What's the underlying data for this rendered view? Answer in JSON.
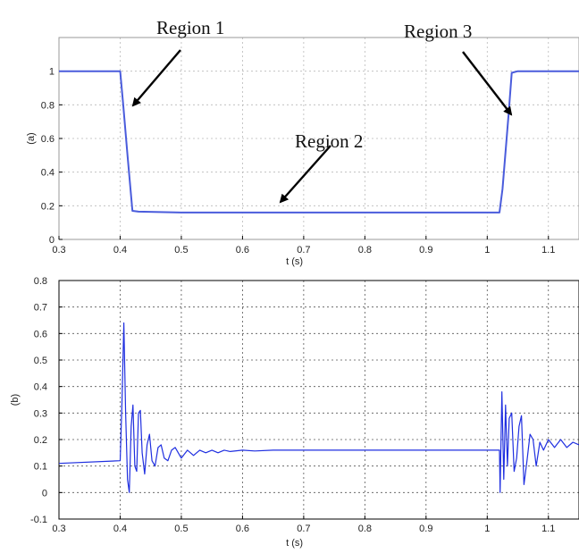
{
  "chart_data": [
    {
      "type": "line",
      "ylabel": "(a)",
      "xlabel": "t (s)",
      "xlim": [
        0.3,
        1.15
      ],
      "ylim": [
        0,
        1.2
      ],
      "xticks": [
        "0.3",
        "0.4",
        "0.5",
        "0.6",
        "0.7",
        "0.8",
        "0.9",
        "1",
        "1.1"
      ],
      "yticks": [
        "0",
        "0.2",
        "0.4",
        "0.6",
        "0.8",
        "1"
      ],
      "grid": true,
      "line_color": "#4a5cdc",
      "series": [
        {
          "x": [
            0.3,
            0.4,
            0.405,
            0.412,
            0.42,
            0.43,
            0.5,
            0.6,
            0.7,
            0.8,
            0.9,
            1.0,
            1.02,
            1.025,
            1.035,
            1.04,
            1.05,
            1.15
          ],
          "y": [
            1.0,
            1.0,
            0.8,
            0.5,
            0.17,
            0.165,
            0.16,
            0.16,
            0.16,
            0.16,
            0.16,
            0.16,
            0.16,
            0.3,
            0.75,
            0.99,
            1.0,
            1.0
          ]
        }
      ],
      "annotations": [
        {
          "text": "Region 1",
          "x": 0.42,
          "y": 0.8
        },
        {
          "text": "Region 2",
          "x": 0.66,
          "y": 0.17
        },
        {
          "text": "Region 3",
          "x": 1.02,
          "y": 0.8
        }
      ]
    },
    {
      "type": "line",
      "ylabel": "(b)",
      "xlabel": "t (s)",
      "xlim": [
        0.3,
        1.15
      ],
      "ylim": [
        -0.1,
        0.8
      ],
      "xticks": [
        "0.3",
        "0.4",
        "0.5",
        "0.6",
        "0.7",
        "0.8",
        "0.9",
        "1",
        "1.1"
      ],
      "yticks": [
        "-0.1",
        "0",
        "0.1",
        "0.2",
        "0.3",
        "0.4",
        "0.5",
        "0.6",
        "0.7",
        "0.8"
      ],
      "grid": true,
      "line_color": "#1f2fe0",
      "series": [
        {
          "x": [
            0.3,
            0.4,
            0.403,
            0.406,
            0.409,
            0.412,
            0.415,
            0.418,
            0.421,
            0.424,
            0.427,
            0.43,
            0.433,
            0.436,
            0.44,
            0.444,
            0.448,
            0.452,
            0.457,
            0.462,
            0.467,
            0.472,
            0.478,
            0.484,
            0.49,
            0.5,
            0.51,
            0.52,
            0.53,
            0.54,
            0.55,
            0.56,
            0.57,
            0.58,
            0.6,
            0.62,
            0.65,
            0.7,
            0.8,
            0.9,
            1.0,
            1.02,
            1.021,
            1.024,
            1.027,
            1.03,
            1.033,
            1.036,
            1.04,
            1.044,
            1.048,
            1.052,
            1.056,
            1.06,
            1.065,
            1.07,
            1.075,
            1.08,
            1.086,
            1.092,
            1.1,
            1.11,
            1.12,
            1.13,
            1.14,
            1.15
          ],
          "y": [
            0.11,
            0.12,
            0.34,
            0.64,
            0.3,
            0.05,
            0.0,
            0.25,
            0.33,
            0.1,
            0.08,
            0.3,
            0.31,
            0.15,
            0.07,
            0.18,
            0.22,
            0.12,
            0.1,
            0.17,
            0.18,
            0.13,
            0.12,
            0.16,
            0.17,
            0.13,
            0.16,
            0.14,
            0.16,
            0.15,
            0.16,
            0.15,
            0.16,
            0.155,
            0.16,
            0.157,
            0.16,
            0.16,
            0.16,
            0.16,
            0.16,
            0.16,
            0.0,
            0.38,
            0.05,
            0.33,
            0.1,
            0.28,
            0.3,
            0.08,
            0.13,
            0.25,
            0.29,
            0.03,
            0.12,
            0.22,
            0.2,
            0.1,
            0.19,
            0.16,
            0.2,
            0.17,
            0.2,
            0.17,
            0.19,
            0.18
          ]
        }
      ]
    }
  ]
}
